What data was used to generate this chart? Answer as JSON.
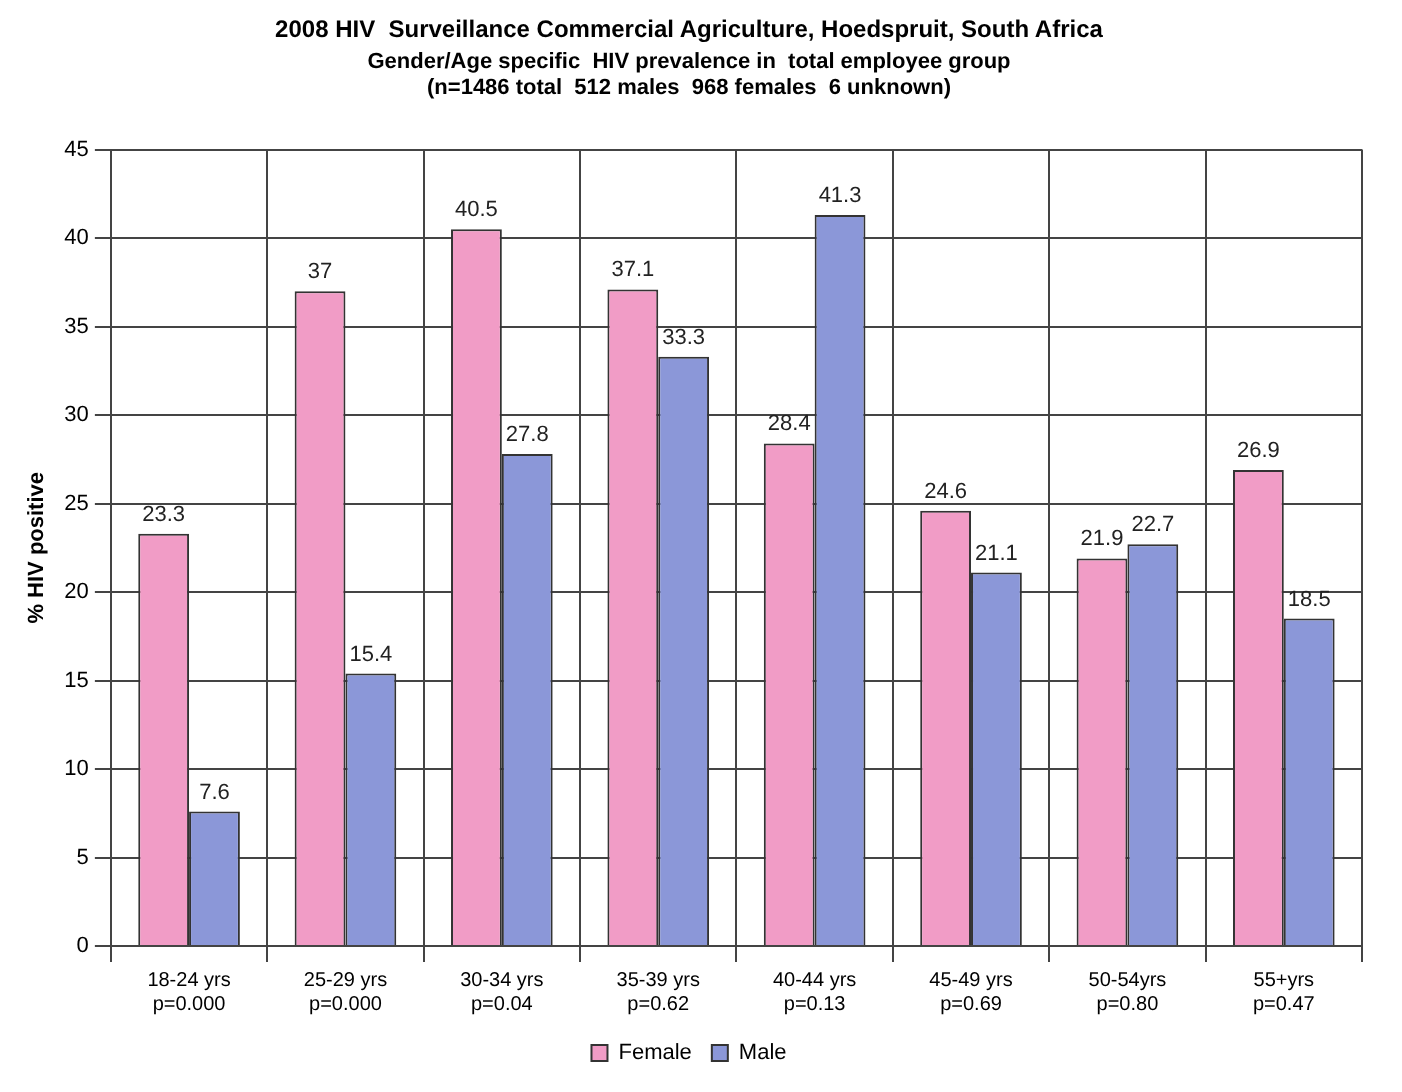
{
  "chart_data": {
    "type": "bar",
    "title": "2008 HIV  Surveillance Commercial Agriculture, Hoedspruit, South Africa",
    "subtitle": "Gender/Age specific  HIV prevalence in  total employee group",
    "annotations": [
      "(n=1486 total  512 males  968 females  6 unknown)"
    ],
    "ylabel": "% HIV positive",
    "categories": [
      "18-24 yrs\np=0.000",
      "25-29 yrs\np=0.000",
      "30-34 yrs\np=0.04",
      "35-39 yrs\np=0.62",
      "40-44 yrs\np=0.13",
      "45-49 yrs\np=0.69",
      "50-54yrs\np=0.80",
      "55+yrs\np=0.47"
    ],
    "series": [
      {
        "name": "Female",
        "color": "#f19cc6",
        "values": [
          23.3,
          37,
          40.5,
          37.1,
          28.4,
          24.6,
          21.9,
          26.9
        ]
      },
      {
        "name": "Male",
        "color": "#8b97d8",
        "values": [
          7.6,
          15.4,
          27.8,
          33.3,
          41.3,
          21.1,
          22.7,
          18.5
        ]
      }
    ],
    "ylim": [
      0,
      45
    ],
    "yticks": [
      0,
      5,
      10,
      15,
      20,
      25,
      30,
      35,
      40,
      45
    ],
    "grid": true,
    "legend": "bottom",
    "data_labels": true
  }
}
